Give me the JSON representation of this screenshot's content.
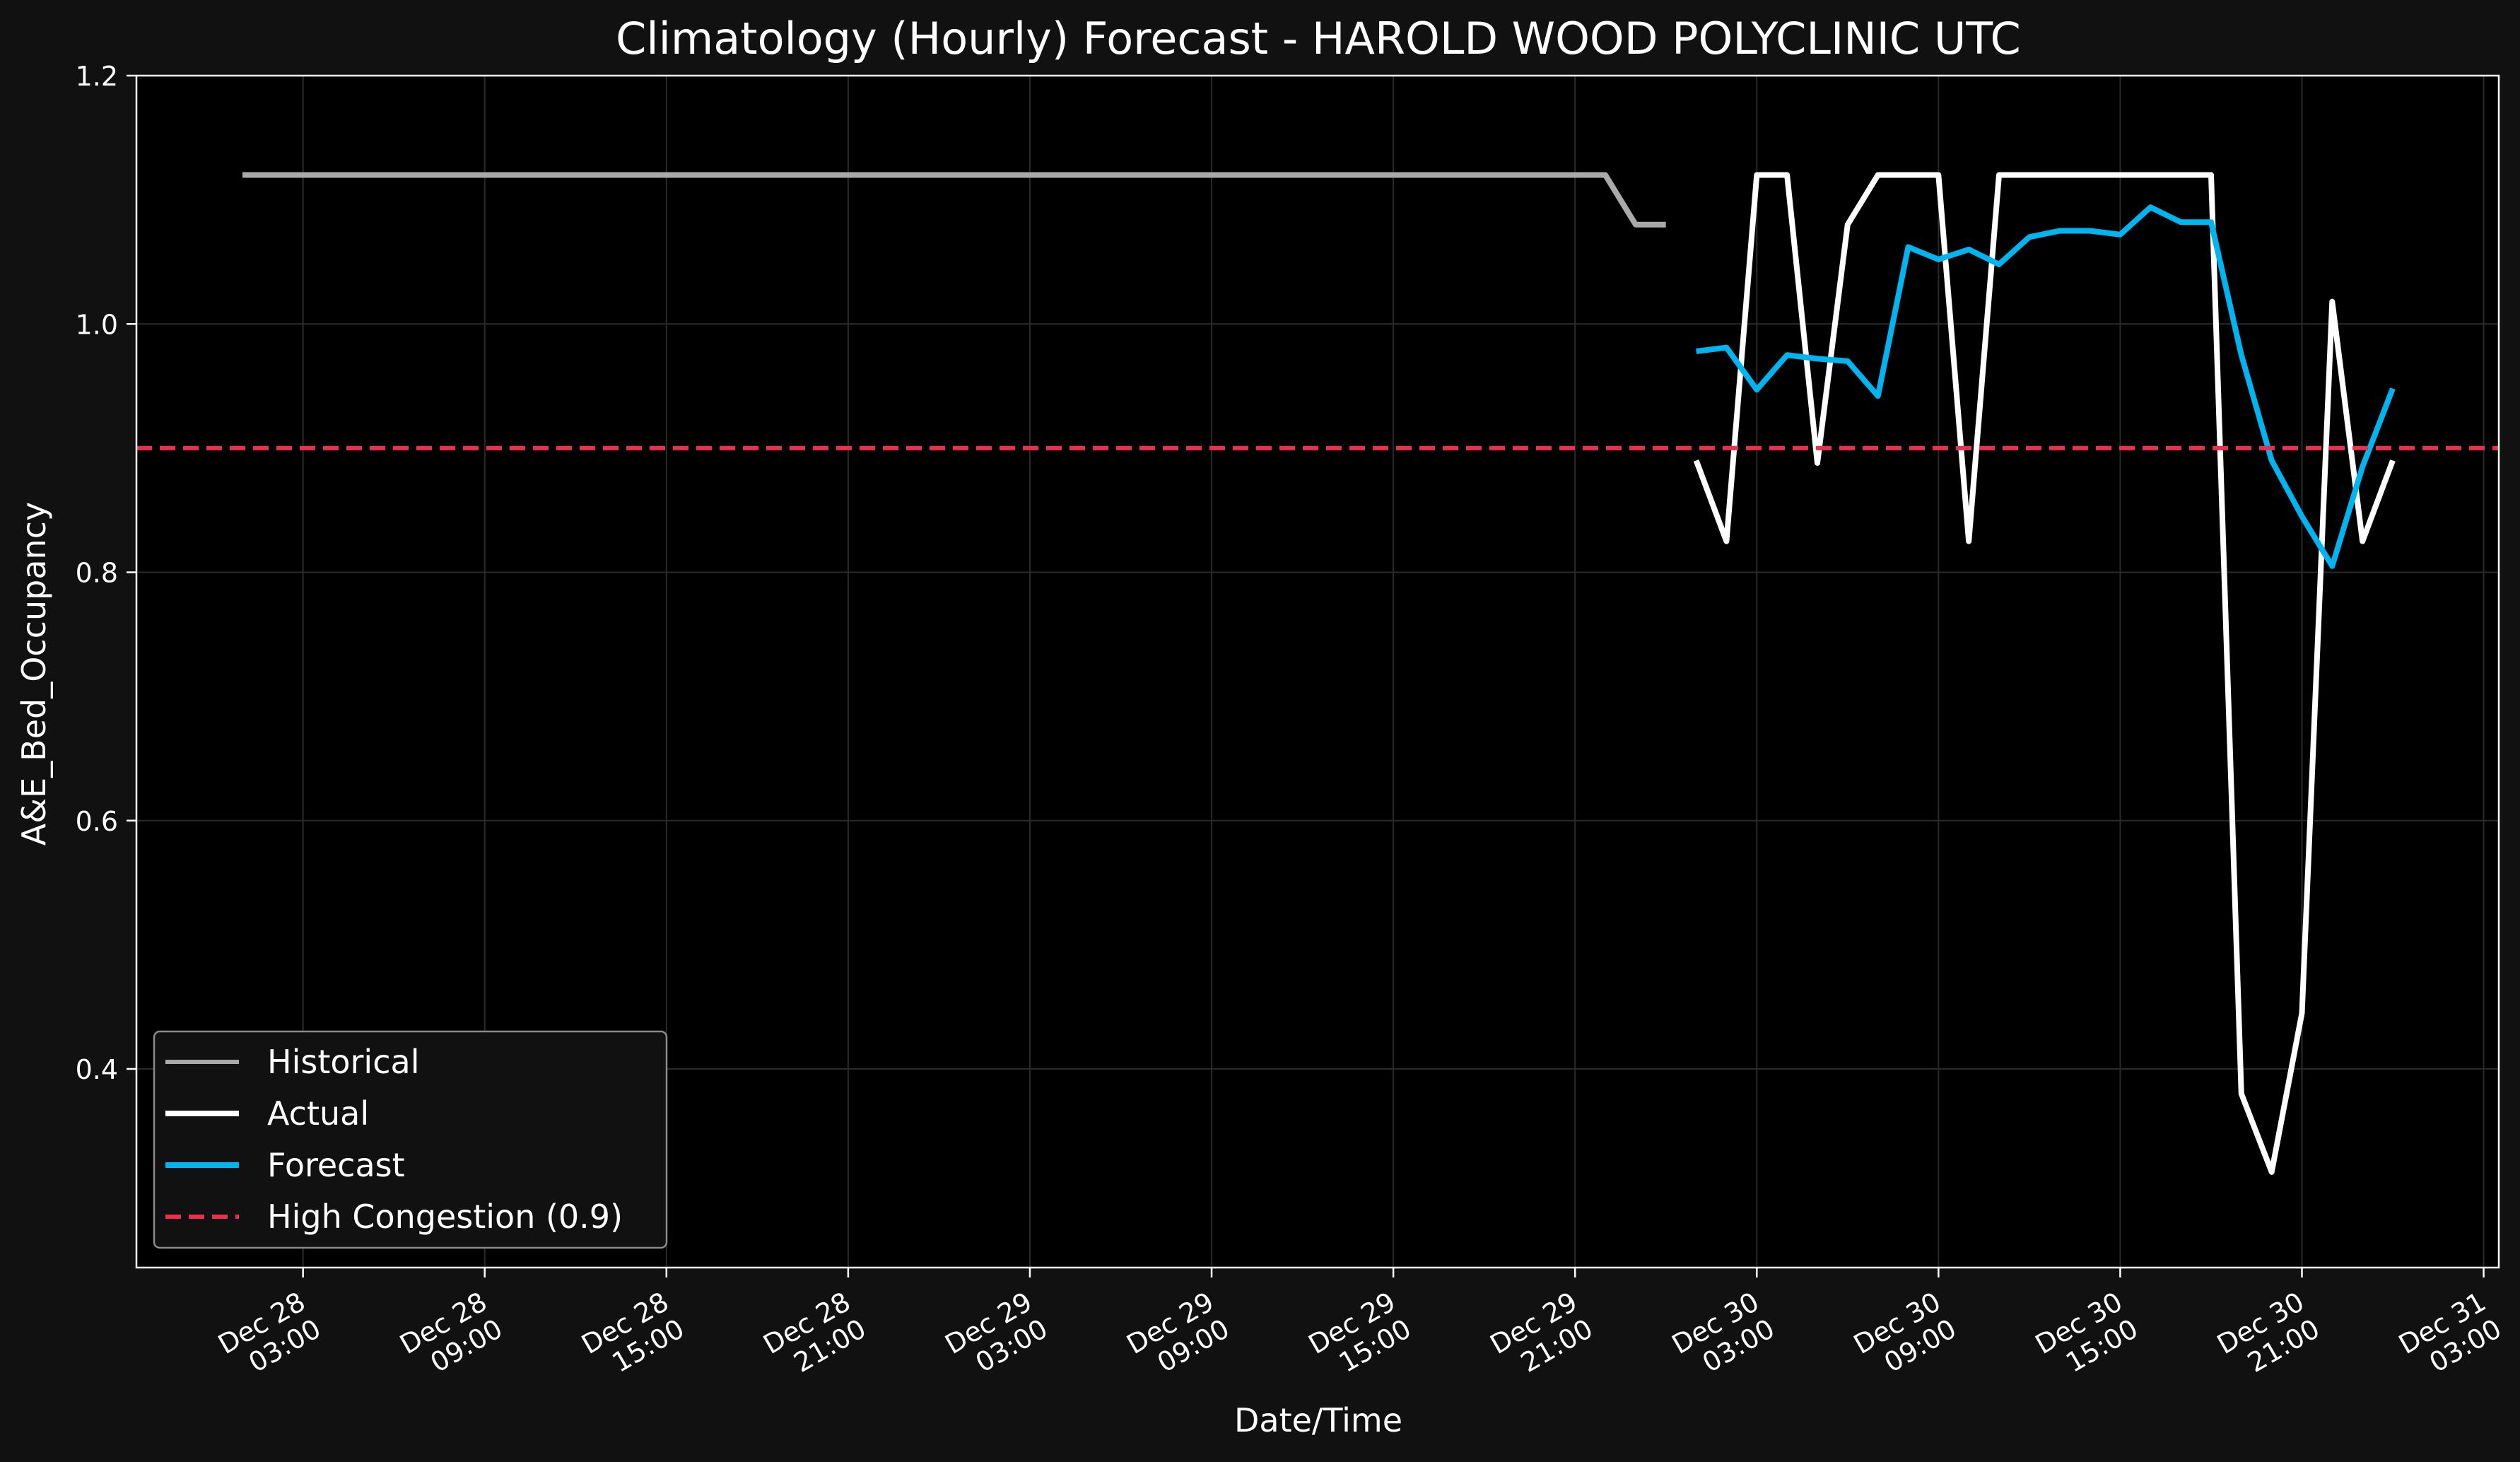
{
  "chart_data": {
    "type": "line",
    "title": "Climatology (Hourly) Forecast - HAROLD WOOD POLYCLINIC UTC",
    "xlabel": "Date/Time",
    "ylabel": "A&E_Bed_Occupancy",
    "ylim": [
      0.24,
      1.2
    ],
    "xlim": [
      "2025-12-27T21:30",
      "2025-12-31T03:30"
    ],
    "y_ticks": [
      "0.4",
      "0.6",
      "0.8",
      "1.0",
      "1.2"
    ],
    "y_tick_values": [
      0.4,
      0.6,
      0.8,
      1.0,
      1.2
    ],
    "x_ticks": [
      {
        "t": "2025-12-28T03:00",
        "line1": "Dec 28",
        "line2": "03:00"
      },
      {
        "t": "2025-12-28T09:00",
        "line1": "Dec 28",
        "line2": "09:00"
      },
      {
        "t": "2025-12-28T15:00",
        "line1": "Dec 28",
        "line2": "15:00"
      },
      {
        "t": "2025-12-28T21:00",
        "line1": "Dec 28",
        "line2": "21:00"
      },
      {
        "t": "2025-12-29T03:00",
        "line1": "Dec 29",
        "line2": "03:00"
      },
      {
        "t": "2025-12-29T09:00",
        "line1": "Dec 29",
        "line2": "09:00"
      },
      {
        "t": "2025-12-29T15:00",
        "line1": "Dec 29",
        "line2": "15:00"
      },
      {
        "t": "2025-12-29T21:00",
        "line1": "Dec 29",
        "line2": "21:00"
      },
      {
        "t": "2025-12-30T03:00",
        "line1": "Dec 30",
        "line2": "03:00"
      },
      {
        "t": "2025-12-30T09:00",
        "line1": "Dec 30",
        "line2": "09:00"
      },
      {
        "t": "2025-12-30T15:00",
        "line1": "Dec 30",
        "line2": "15:00"
      },
      {
        "t": "2025-12-30T21:00",
        "line1": "Dec 30",
        "line2": "21:00"
      },
      {
        "t": "2025-12-31T03:00",
        "line1": "Dec 31",
        "line2": "03:00"
      }
    ],
    "series": [
      {
        "name": "Historical",
        "color": "#aaaaaa",
        "style": "solid",
        "points": [
          [
            "2025-12-28T01:00",
            1.12
          ],
          [
            "2025-12-29T22:00",
            1.12
          ],
          [
            "2025-12-29T23:00",
            1.08
          ],
          [
            "2025-12-30T00:00",
            1.08
          ]
        ]
      },
      {
        "name": "Actual",
        "color": "#ffffff",
        "style": "solid",
        "points": [
          [
            "2025-12-30T01:00",
            0.89
          ],
          [
            "2025-12-30T02:00",
            0.825
          ],
          [
            "2025-12-30T03:00",
            1.12
          ],
          [
            "2025-12-30T04:00",
            1.12
          ],
          [
            "2025-12-30T05:00",
            0.888
          ],
          [
            "2025-12-30T06:00",
            1.08
          ],
          [
            "2025-12-30T07:00",
            1.12
          ],
          [
            "2025-12-30T08:00",
            1.12
          ],
          [
            "2025-12-30T09:00",
            1.12
          ],
          [
            "2025-12-30T10:00",
            0.825
          ],
          [
            "2025-12-30T11:00",
            1.12
          ],
          [
            "2025-12-30T12:00",
            1.12
          ],
          [
            "2025-12-30T13:00",
            1.12
          ],
          [
            "2025-12-30T14:00",
            1.12
          ],
          [
            "2025-12-30T15:00",
            1.12
          ],
          [
            "2025-12-30T16:00",
            1.12
          ],
          [
            "2025-12-30T17:00",
            1.12
          ],
          [
            "2025-12-30T18:00",
            1.12
          ],
          [
            "2025-12-30T19:00",
            0.38
          ],
          [
            "2025-12-30T20:00",
            0.317
          ],
          [
            "2025-12-30T21:00",
            0.445
          ],
          [
            "2025-12-30T22:00",
            1.018
          ],
          [
            "2025-12-30T23:00",
            0.825
          ],
          [
            "2025-12-31T00:00",
            0.89
          ]
        ]
      },
      {
        "name": "Forecast",
        "color": "#00b4ef",
        "style": "solid",
        "points": [
          [
            "2025-12-30T01:00",
            0.978
          ],
          [
            "2025-12-30T02:00",
            0.981
          ],
          [
            "2025-12-30T03:00",
            0.947
          ],
          [
            "2025-12-30T04:00",
            0.975
          ],
          [
            "2025-12-30T05:00",
            0.972
          ],
          [
            "2025-12-30T06:00",
            0.97
          ],
          [
            "2025-12-30T07:00",
            0.942
          ],
          [
            "2025-12-30T08:00",
            1.062
          ],
          [
            "2025-12-30T09:00",
            1.052
          ],
          [
            "2025-12-30T10:00",
            1.06
          ],
          [
            "2025-12-30T11:00",
            1.048
          ],
          [
            "2025-12-30T12:00",
            1.07
          ],
          [
            "2025-12-30T13:00",
            1.075
          ],
          [
            "2025-12-30T14:00",
            1.075
          ],
          [
            "2025-12-30T15:00",
            1.072
          ],
          [
            "2025-12-30T16:00",
            1.094
          ],
          [
            "2025-12-30T17:00",
            1.082
          ],
          [
            "2025-12-30T18:00",
            1.082
          ],
          [
            "2025-12-30T19:00",
            0.975
          ],
          [
            "2025-12-30T20:00",
            0.89
          ],
          [
            "2025-12-30T21:00",
            0.845
          ],
          [
            "2025-12-30T22:00",
            0.805
          ],
          [
            "2025-12-30T23:00",
            0.885
          ],
          [
            "2025-12-31T00:00",
            0.948
          ]
        ]
      }
    ],
    "reference_line": {
      "name": "High Congestion (0.9)",
      "y": 0.9,
      "color": "#ee2e4f",
      "style": "dashed"
    },
    "grid": true,
    "legend_position": "bottom-left",
    "colors": {
      "figure_background": "#111111",
      "plot_background": "#000000",
      "axis": "#ffffff",
      "grid": "#2a2a2a"
    }
  }
}
